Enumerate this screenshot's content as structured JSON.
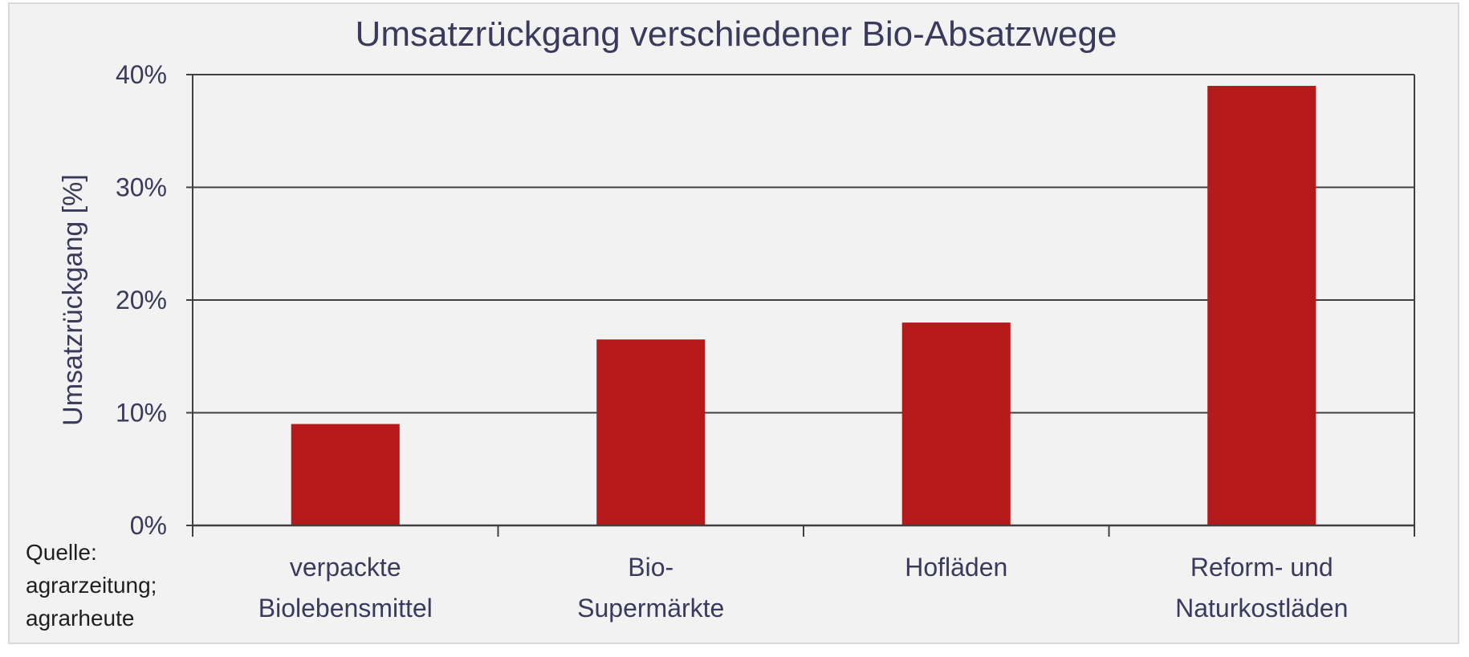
{
  "chart_data": {
    "type": "bar",
    "title": "Umsatzrückgang verschiedener Bio-Absatzwege",
    "xlabel": "",
    "ylabel": "Umsatzrückgang [%]",
    "categories": [
      [
        "verpackte",
        "Biolebensmittel"
      ],
      [
        "Bio-",
        "Supermärkte"
      ],
      [
        "Hofläden"
      ],
      [
        "Reform- und",
        "Naturkostläden"
      ]
    ],
    "values": [
      9,
      16.5,
      18,
      39
    ],
    "ylim": [
      0,
      40
    ],
    "yticks": [
      0,
      10,
      20,
      30,
      40
    ],
    "ytick_labels": [
      "0%",
      "10%",
      "20%",
      "30%",
      "40%"
    ],
    "grid": true,
    "legend": "none",
    "bar_color": "#b5191a",
    "grid_color": "#404040",
    "text_color": "#3a3a5c",
    "background_color": "#f2f2f2"
  },
  "source_note": [
    "Quelle:",
    "agrarzeitung;",
    "agrarheute"
  ]
}
